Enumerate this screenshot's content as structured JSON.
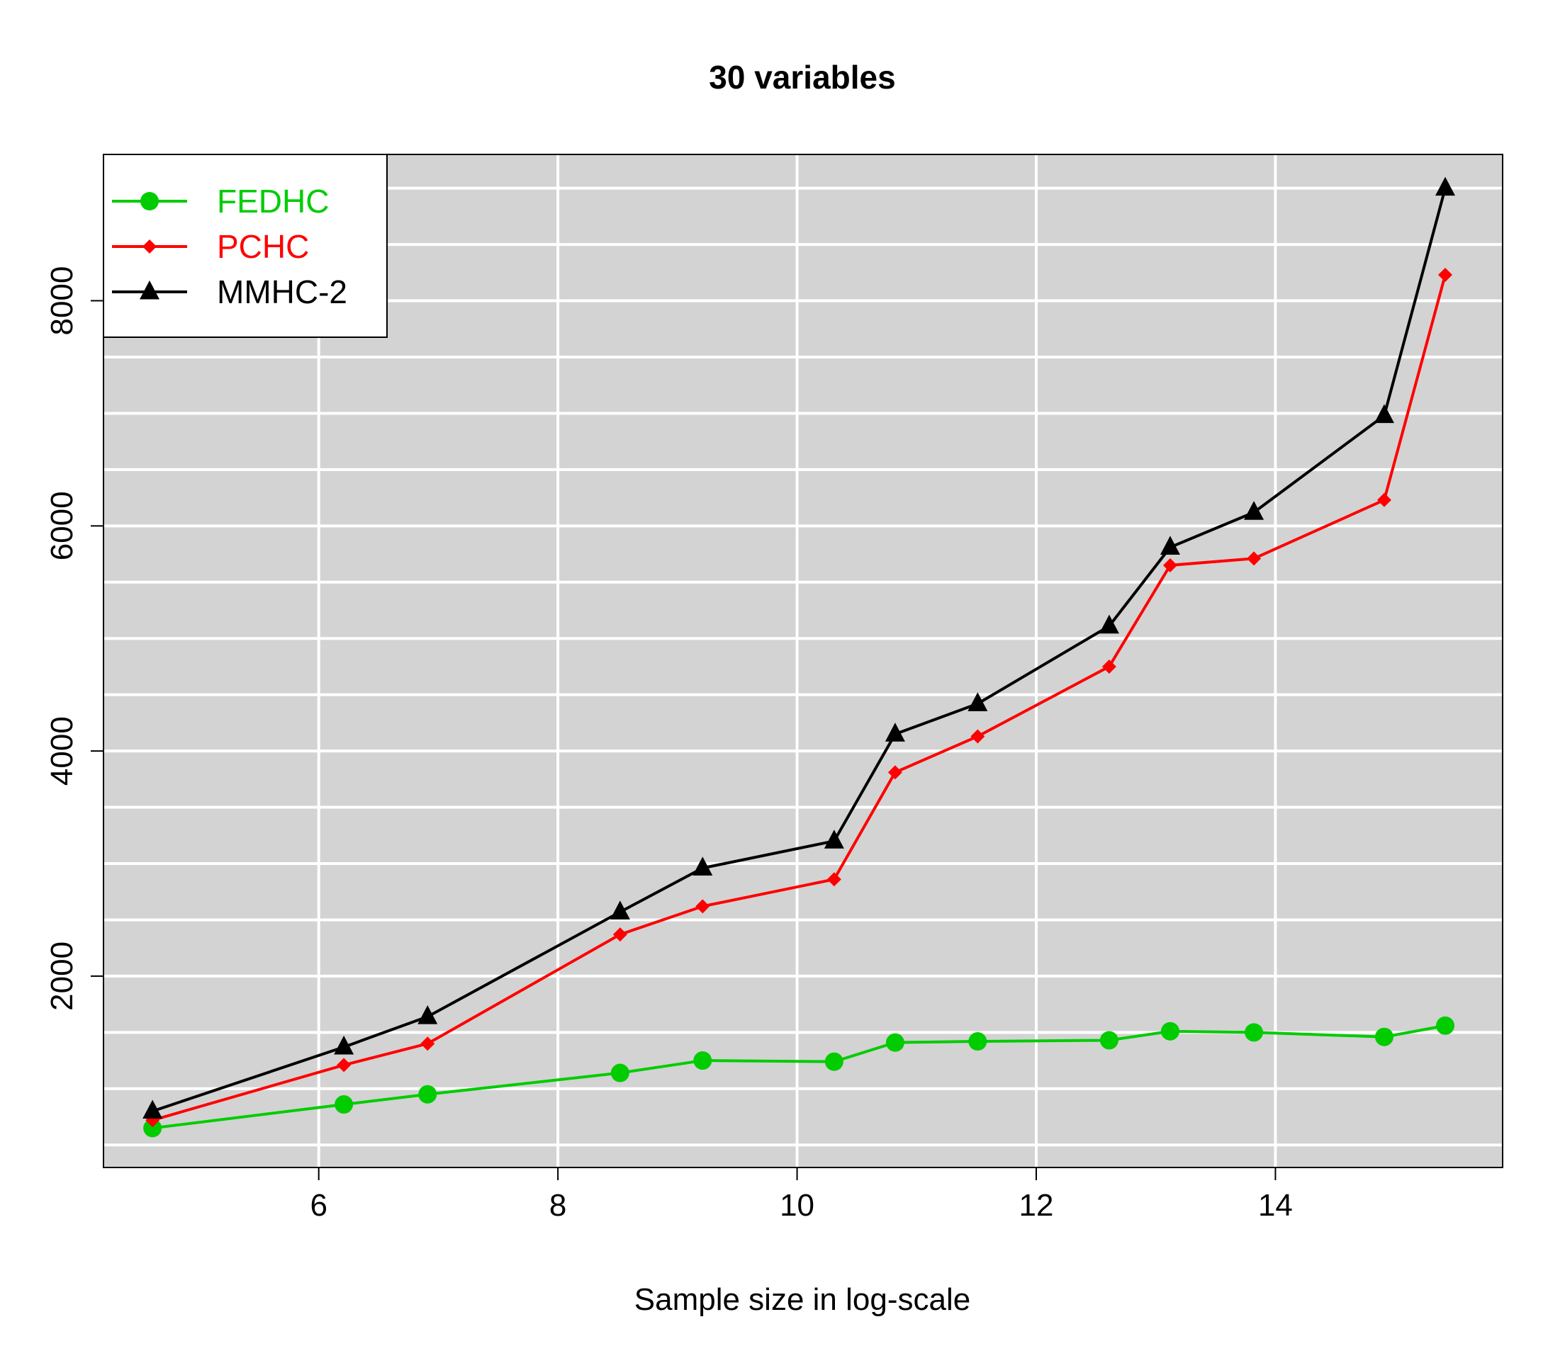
{
  "chart_data": {
    "type": "line",
    "title": "30 variables",
    "xlabel": "Sample size in log-scale",
    "ylabel": "",
    "xlim": [
      4.2,
      15.9
    ],
    "ylim": [
      300,
      9300
    ],
    "x_ticks": [
      6,
      8,
      10,
      12,
      14
    ],
    "y_ticks": [
      2000,
      4000,
      6000,
      8000
    ],
    "y_grid": [
      500,
      1000,
      1500,
      2000,
      2500,
      3000,
      3500,
      4000,
      4500,
      5000,
      5500,
      6000,
      6500,
      7000,
      7500,
      8000,
      8500,
      9000
    ],
    "x_grid": [
      6,
      8,
      10,
      12,
      14
    ],
    "grid": true,
    "background": "#d3d3d3",
    "legend_position": "top-left",
    "x": [
      4.61,
      6.21,
      6.91,
      8.52,
      9.21,
      10.31,
      10.82,
      11.51,
      12.61,
      13.12,
      13.82,
      14.91,
      15.42
    ],
    "series": [
      {
        "name": "FEDHC",
        "color": "#00cc00",
        "marker": "circle",
        "values": [
          650,
          860,
          950,
          1140,
          1250,
          1240,
          1410,
          1420,
          1430,
          1510,
          1500,
          1460,
          1560
        ]
      },
      {
        "name": "PCHC",
        "color": "#ff0000",
        "marker": "diamond",
        "values": [
          720,
          1210,
          1400,
          2370,
          2620,
          2860,
          3810,
          4130,
          4750,
          5650,
          5710,
          6230,
          8230
        ]
      },
      {
        "name": "MMHC-2",
        "color": "#000000",
        "marker": "triangle",
        "values": [
          800,
          1370,
          1640,
          2570,
          2960,
          3200,
          4150,
          4420,
          5110,
          5810,
          6120,
          6980,
          9000
        ]
      }
    ]
  }
}
